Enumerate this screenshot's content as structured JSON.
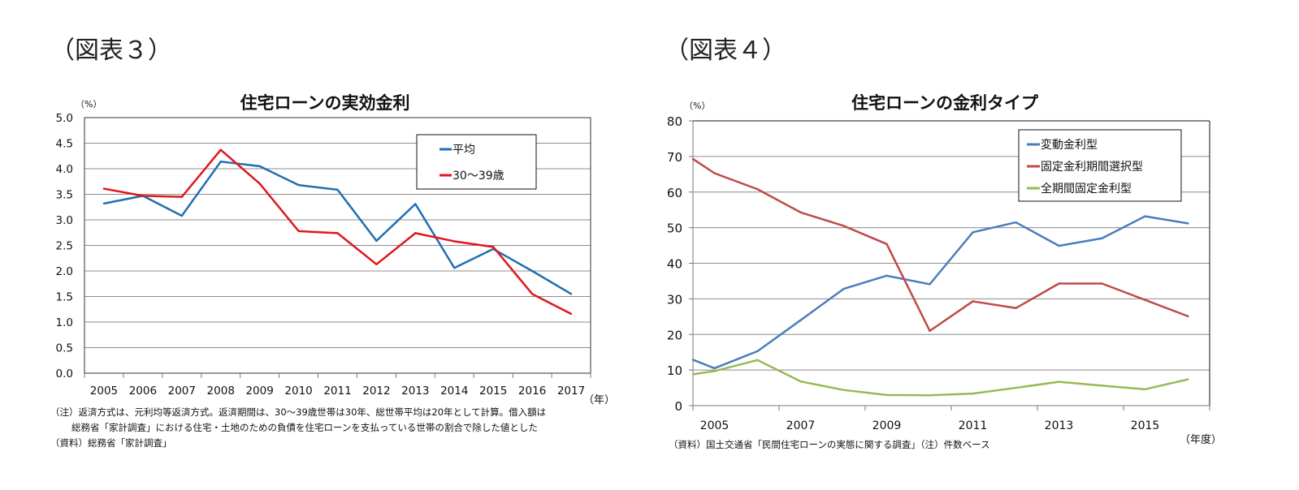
{
  "chart_data": [
    {
      "type": "line",
      "figure_label": "（図表３）",
      "title": "住宅ローンの実効金利",
      "ylabel": "（%）",
      "xlabel": "（年）",
      "ylim": [
        0,
        5
      ],
      "yticks": [
        "0.0",
        "0.5",
        "1.0",
        "1.5",
        "2.0",
        "2.5",
        "3.0",
        "3.5",
        "4.0",
        "4.5",
        "5.0"
      ],
      "categories": [
        "2005",
        "2006",
        "2007",
        "2008",
        "2009",
        "2010",
        "2011",
        "2012",
        "2013",
        "2014",
        "2015",
        "2016",
        "2017"
      ],
      "grid": true,
      "legend_position": "top-right",
      "series": [
        {
          "name": "平均",
          "color": "#1f6fb2",
          "values": [
            3.32,
            3.47,
            3.08,
            4.14,
            4.05,
            3.68,
            3.59,
            2.59,
            3.31,
            2.06,
            2.43,
            2.0,
            1.55
          ]
        },
        {
          "name": "30～39歳",
          "color": "#e0161c",
          "values": [
            3.61,
            3.47,
            3.45,
            4.37,
            3.71,
            2.78,
            2.74,
            2.13,
            2.74,
            2.58,
            2.47,
            1.55,
            1.16
          ]
        }
      ],
      "notes": [
        "（注）返済方式は、元利均等返済方式。返済期間は、30～39歳世帯は30年、総世帯平均は20年として計算。借入額は",
        "総務省「家計調査」における住宅・土地のための負債を住宅ローンを支払っている世帯の割合で除した値とした",
        "（資料）総務省「家計調査」"
      ]
    },
    {
      "type": "line",
      "figure_label": "（図表４）",
      "title": "住宅ローンの金利タイプ",
      "ylabel": "（%）",
      "xlabel": "（年度）",
      "ylim": [
        0,
        80
      ],
      "xlim": [
        2004.5,
        2016.5
      ],
      "yticks": [
        "0",
        "10",
        "20",
        "30",
        "40",
        "50",
        "60",
        "70",
        "80"
      ],
      "xtick_labels": [
        "2005",
        "2007",
        "2009",
        "2011",
        "2013",
        "2015"
      ],
      "x": [
        2004.5,
        2005,
        2006,
        2007,
        2008,
        2009,
        2010,
        2011,
        2012,
        2013,
        2014,
        2015,
        2016
      ],
      "grid": true,
      "legend_position": "top-right",
      "series": [
        {
          "name": "変動金利型",
          "color": "#4a7ebb",
          "values": [
            12.9,
            10.5,
            15.3,
            24.0,
            32.8,
            36.5,
            34.1,
            48.7,
            51.5,
            44.9,
            47.0,
            53.2,
            51.2
          ]
        },
        {
          "name": "固定金利期間選択型",
          "color": "#be4b48",
          "values": [
            69.3,
            65.3,
            60.8,
            54.3,
            50.5,
            45.4,
            21.0,
            29.3,
            27.4,
            34.3,
            34.3,
            29.7,
            25.1
          ]
        },
        {
          "name": "全期間固定金利型",
          "color": "#98b954",
          "values": [
            8.8,
            9.7,
            12.8,
            6.8,
            4.4,
            3.0,
            2.9,
            3.4,
            5.0,
            6.7,
            5.6,
            4.6,
            7.4
          ]
        }
      ],
      "notes": [
        "（資料）国土交通省「民間住宅ローンの実態に関する調査」（注）件数ベース"
      ]
    }
  ]
}
